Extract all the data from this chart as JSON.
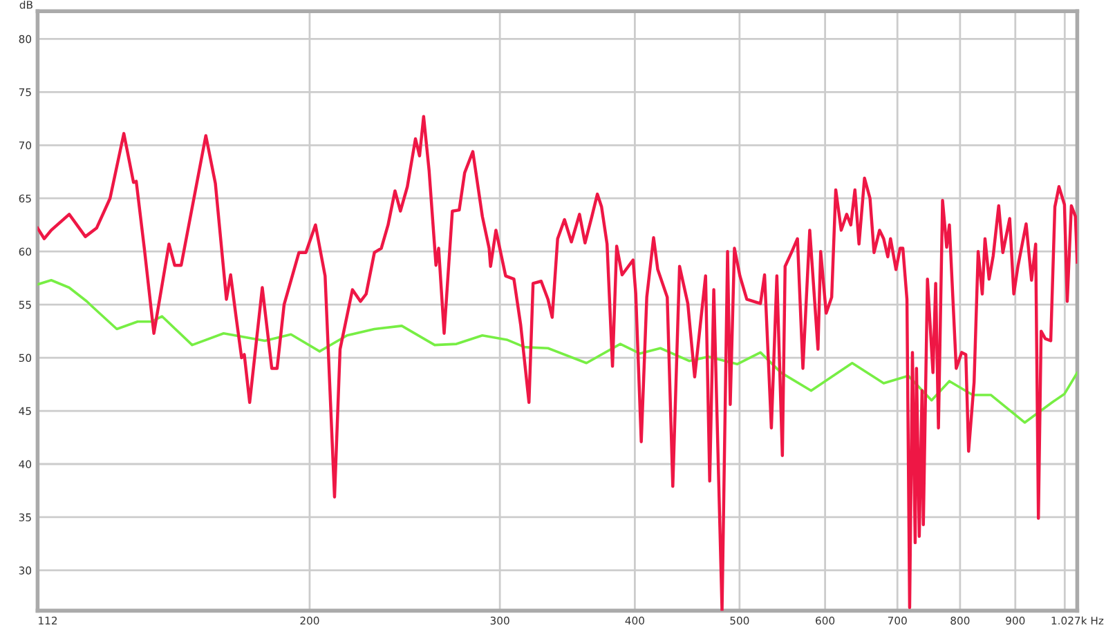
{
  "chart_data": {
    "type": "line",
    "ylabel": "dB",
    "log": "x",
    "grid": true,
    "legend": false,
    "marker": "none",
    "line_style": "solid",
    "xlim": [
      112,
      1027
    ],
    "ylim": [
      26.2,
      82.6
    ],
    "xticks": [
      112,
      200,
      300,
      400,
      500,
      600,
      700,
      800,
      900,
      {
        "value": 1000,
        "label": null
      },
      {
        "value": 1027,
        "label": "1.027k Hz"
      }
    ],
    "yticks": [
      30,
      35,
      40,
      45,
      50,
      55,
      60,
      65,
      70,
      75,
      80
    ],
    "series": [
      {
        "color": "#ee1745",
        "x": [
          112,
          113.6,
          115.3,
          119.8,
          124.0,
          127,
          130.7,
          134.6,
          137.4,
          138.2,
          140.6,
          143.5,
          148.2,
          150,
          152.1,
          160.3,
          163.6,
          167.5,
          169,
          171,
          173,
          174,
          176,
          180.8,
          184.5,
          186.6,
          189.4,
          195.5,
          198.4,
          202.5,
          206.7,
          210.9,
          213.4,
          219.1,
          222.9,
          225.6,
          229.6,
          233,
          236.4,
          239.9,
          242.7,
          246.3,
          250.6,
          252.8,
          255,
          258,
          261.8,
          263.3,
          266.4,
          271.1,
          275.1,
          278.3,
          283.2,
          289,
          293.2,
          294.1,
          297.5,
          303.7,
          309.1,
          313.6,
          319.2,
          322,
          327.6,
          332.4,
          335.4,
          339.3,
          344.3,
          349.4,
          355.5,
          359.7,
          365,
          369.3,
          372.6,
          377,
          381.4,
          384.8,
          389.3,
          398.5,
          400.8,
          405.5,
          410.3,
          416.3,
          420,
          428.6,
          433.7,
          440,
          447.8,
          454.4,
          465.1,
          469.2,
          473.3,
          481.7,
          487.4,
          490.2,
          494.6,
          500.4,
          507.8,
          522.8,
          527.4,
          535.1,
          541.4,
          547.8,
          551,
          559.1,
          565.7,
          572.3,
          580.7,
          591,
          594.4,
          601.4,
          608.5,
          613.8,
          621,
          628.3,
          633.8,
          639.4,
          645,
          652.6,
          660.3,
          666,
          673.9,
          679.8,
          685.8,
          689.8,
          697.9,
          704,
          708.2,
          714.4,
          718.5,
          722.8,
          727,
          729.1,
          733.4,
          737.7,
          739.8,
          746.3,
          755.1,
          759.5,
          764,
          770.7,
          777.5,
          782,
          793.5,
          802.8,
          809.9,
          814.7,
          824.3,
          831.5,
          838.8,
          843.7,
          851.1,
          858.6,
          868.7,
          876.4,
          889.3,
          897.1,
          905,
          921,
          931.7,
          939.9,
          945.4,
          950.9,
          959.3,
          970.6,
          979.2,
          987.8,
          999.4,
          1005.3,
          1014.2,
          1023,
          1027
        ],
        "values": [
          62.2,
          61.2,
          62,
          63.5,
          61.4,
          62.2,
          65,
          71.1,
          66.5,
          66.6,
          60.3,
          52.3,
          60.7,
          58.7,
          58.7,
          70.9,
          66.4,
          55.5,
          57.8,
          53.8,
          50,
          50.3,
          45.8,
          56.6,
          49,
          49,
          55,
          59.9,
          59.9,
          62.5,
          57.7,
          36.9,
          50.8,
          56.4,
          55.3,
          56,
          59.9,
          60.3,
          62.5,
          65.7,
          63.8,
          66.1,
          70.6,
          69,
          72.7,
          67.6,
          58.7,
          60.3,
          52.3,
          63.8,
          63.9,
          67.4,
          69.4,
          63.3,
          60.3,
          58.6,
          62,
          57.7,
          57.4,
          53.1,
          45.8,
          57,
          57.2,
          55.5,
          53.8,
          61.2,
          63,
          60.9,
          63.5,
          60.8,
          63.3,
          65.4,
          64.2,
          60.7,
          49.2,
          60.5,
          57.8,
          59.2,
          56,
          42.1,
          55.7,
          61.3,
          58.3,
          55.7,
          37.9,
          58.6,
          55.1,
          48.2,
          57.7,
          38.4,
          56.4,
          26.2,
          60,
          45.6,
          60.3,
          57.7,
          55.5,
          55.1,
          57.8,
          43.4,
          57.7,
          40.8,
          58.6,
          60,
          61.2,
          49,
          62,
          50.8,
          60,
          54.2,
          55.7,
          65.8,
          62,
          63.5,
          62.5,
          65.8,
          60.7,
          66.9,
          65,
          59.9,
          62,
          61.2,
          59.5,
          61.2,
          58.3,
          60.3,
          60.3,
          55.5,
          26.5,
          50.5,
          32.6,
          49,
          33.2,
          46.9,
          34.3,
          57.4,
          48.6,
          57,
          43.4,
          64.8,
          60.4,
          62.5,
          49,
          50.5,
          50.3,
          41.2,
          47.7,
          60,
          56,
          61.2,
          57.4,
          59.6,
          64.3,
          59.9,
          63.1,
          56,
          58.6,
          62.6,
          57.3,
          60.7,
          34.9,
          52.5,
          51.8,
          51.6,
          64.2,
          66.1,
          64.4,
          55.3,
          64.3,
          63.3,
          59
        ]
      },
      {
        "color": "#77ee44",
        "x": [
          112,
          115.3,
          119.8,
          124.4,
          125.9,
          132.6,
          138.6,
          142.7,
          146,
          155.7,
          166.5,
          181.8,
          192.2,
          204.3,
          216.6,
          229.6,
          243.4,
          261.1,
          273.5,
          289,
          304.4,
          316.2,
          332.4,
          360.8,
          387.8,
          404.3,
          422.4,
          449.1,
          467.8,
          497.5,
          522.8,
          546.2,
          582.4,
          635.7,
          679.8,
          716.5,
          752.9,
          782,
          821.9,
          854.2,
          918.2,
          973.4,
          999.4,
          1027
        ],
        "values": [
          56.9,
          57.3,
          56.6,
          55.3,
          54.8,
          52.7,
          53.4,
          53.4,
          53.9,
          51.2,
          52.3,
          51.6,
          52.2,
          50.6,
          52.1,
          52.7,
          53,
          51.2,
          51.3,
          52.1,
          51.7,
          51,
          50.9,
          49.5,
          51.3,
          50.4,
          50.9,
          49.7,
          50.1,
          49.4,
          50.5,
          48.6,
          46.9,
          49.5,
          47.6,
          48.3,
          46,
          47.8,
          46.5,
          46.5,
          43.9,
          45.8,
          46.6,
          48.6
        ]
      }
    ]
  }
}
